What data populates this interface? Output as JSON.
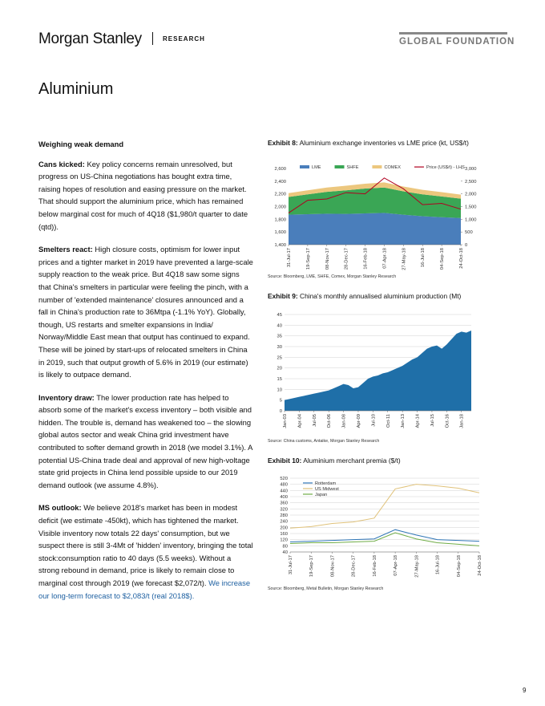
{
  "header": {
    "brand": "Morgan Stanley",
    "section": "RESEARCH",
    "series": "GLOBAL FOUNDATION"
  },
  "title": "Aluminium",
  "heading": "Weighing weak demand",
  "paragraphs": [
    {
      "lead": "Cans kicked:",
      "text": "Key policy concerns remain unresolved, but progress on US-China negotiations has bought extra time, raising hopes of resolution and easing pressure on the market. That should support the aluminium price, which has remained below marginal cost for much of 4Q18 ($1,980/t quarter to date (qtd))."
    },
    {
      "lead": "Smelters react:",
      "text": "High closure costs, optimism for lower input prices and a tighter market in 2019 have prevented a large-scale supply reaction to the weak price. But 4Q18 saw some signs that China's smelters in particular were feeling the pinch, with a number of 'extended maintenance' closures announced and a fall in China's production rate to 36Mtpa (-1.1% YoY). Globally, though, US restarts and smelter expansions in India/ Norway/Middle East mean that output has continued to expand. These will be joined by start-ups of relocated smelters in China in 2019, such that output growth of 5.6% in 2019 (our estimate) is likely to outpace demand."
    },
    {
      "lead": "Inventory draw:",
      "text": "The lower production rate has helped to absorb some of the market's excess inventory – both visible and hidden. The trouble is, demand has weakened too – the slowing global autos sector and weak China grid investment have contributed to softer demand growth in 2018 (we model 3.1%). A potential US-China trade deal and approval of new high-voltage state grid projects in China lend possible upside to our 2019 demand outlook (we assume 4.8%)."
    },
    {
      "lead": "MS outlook:",
      "text": "We believe 2018's market has been in modest deficit (we estimate -450kt), which has tightened the market. Visible inventory now totals 22 days' consumption, but we suspect there is still 3-4Mt of 'hidden' inventory, bringing the total stock:consumption ratio to 40 days (5.5 weeks). Without a strong rebound in demand, price is likely to remain close to marginal cost through 2019 (we forecast $2,072/t).",
      "highlight": "We increase our long-term forecast to $2,083/t (real 2018$)."
    }
  ],
  "exhibits": [
    {
      "label": "Exhibit 8:",
      "title": "Aluminium exchange inventories vs LME price (kt, US$/t)",
      "source": "Source: Bloomberg, LME, SHFE, Comex, Morgan Stanley Research",
      "chart": {
        "type": "area",
        "legend": "top",
        "categories": [
          "31-Jul-17",
          "19-Sep-17",
          "08-Nov-17",
          "28-Dec-17",
          "16-Feb-18",
          "07-Apr-18",
          "27-May-18",
          "16-Jul-18",
          "04-Sep-18",
          "24-Oct-18"
        ],
        "series": [
          {
            "name": "LME",
            "color": "#4a7ebb",
            "type": "area",
            "axis": "y2",
            "values": [
              1180,
              1200,
              1220,
              1210,
              1230,
              1250,
              1180,
              1120,
              1080,
              1050
            ]
          },
          {
            "name": "SHFE",
            "color": "#3aa655",
            "type": "area",
            "axis": "y2",
            "values": [
              700,
              780,
              860,
              930,
              980,
              1000,
              920,
              860,
              820,
              760
            ]
          },
          {
            "name": "COMEX",
            "color": "#ecc77e",
            "type": "area",
            "axis": "y2",
            "values": [
              150,
              160,
              170,
              180,
              190,
              200,
              190,
              180,
              170,
              160
            ]
          },
          {
            "name": "Price (US$/t) - LHS",
            "color": "#b00020",
            "type": "line",
            "values": [
              1900,
              2100,
              2120,
              2220,
              2200,
              2450,
              2280,
              2030,
              2050,
              1960
            ]
          }
        ],
        "ylim": [
          1400,
          2600
        ],
        "yticks": [
          {
            "value": 1400,
            "label": "1,400"
          },
          {
            "value": 1600,
            "label": "1,600"
          },
          {
            "value": 1800,
            "label": "1,800"
          },
          {
            "value": 2000,
            "label": "2,000"
          },
          {
            "value": 2200,
            "label": "2,200"
          },
          {
            "value": 2400,
            "label": "2,400"
          },
          {
            "value": 2600,
            "label": "2,600"
          }
        ],
        "y2lim": [
          0,
          3000
        ],
        "y2ticks": [
          0,
          500,
          {
            "value": 1000,
            "label": "1,000"
          },
          {
            "value": 1500,
            "label": "1,500"
          },
          {
            "value": 2000,
            "label": "2,000"
          },
          {
            "value": 2500,
            "label": "2,500"
          },
          {
            "value": 3000,
            "label": "3,000"
          }
        ],
        "grid": false
      }
    },
    {
      "label": "Exhibit 9:",
      "title": "China's monthly annualised aluminium production (Mt)",
      "source": "Source: China customs, Antaike, Morgan Stanley Research",
      "chart": {
        "type": "area",
        "color": "#1f6fa8",
        "categories": [
          "Jan-03",
          null,
          null,
          "Apr-04",
          null,
          null,
          "Jul-05",
          null,
          null,
          "Oct-06",
          null,
          null,
          "Jan-08",
          null,
          null,
          "Apr-09",
          null,
          null,
          "Jul-10",
          null,
          null,
          "Oct-11",
          null,
          null,
          "Jan-13",
          null,
          null,
          "Apr-14",
          null,
          null,
          "Jul-15",
          null,
          null,
          "Oct-16",
          null,
          null,
          "Jan-18",
          null,
          null
        ],
        "values": [
          5,
          5.5,
          6,
          6.5,
          7,
          7.5,
          8,
          8.5,
          9,
          9.5,
          10.5,
          11.5,
          12.5,
          12,
          10.5,
          11,
          13,
          15,
          16,
          16.5,
          17.5,
          18,
          19,
          20,
          21,
          22.5,
          24,
          25,
          27,
          29,
          30,
          30.5,
          29,
          31,
          33.5,
          36,
          37,
          36.5,
          37.5
        ],
        "ylim": [
          0,
          45
        ],
        "yticks": [
          0,
          5,
          10,
          15,
          20,
          25,
          30,
          35,
          40,
          45
        ],
        "grid": true
      }
    },
    {
      "label": "Exhibit 10:",
      "title": "Aluminium merchant premia ($/t)",
      "source": "Source: Bloomberg, Metal Bulletin, Morgan Stanley Research",
      "chart": {
        "type": "line",
        "legend": "upper left",
        "categories": [
          "31-Jul-17",
          "19-Sep-17",
          "08-Nov-17",
          "28-Dec-17",
          "16-Feb-18",
          "07-Apr-18",
          "27-May-18",
          "16-Jul-18",
          "04-Sep-18",
          "24-Oct-18"
        ],
        "series": [
          {
            "name": "Rotterdam",
            "color": "#2e75b6",
            "values": [
              105,
              110,
              115,
              120,
              125,
              185,
              150,
              120,
              115,
              110
            ]
          },
          {
            "name": "US Midwest",
            "color": "#e0c27a",
            "values": [
              195,
              205,
              225,
              235,
              260,
              450,
              480,
              470,
              455,
              425
            ]
          },
          {
            "name": "Japan",
            "color": "#70ad47",
            "values": [
              95,
              100,
              100,
              105,
              110,
              165,
              125,
              100,
              90,
              80
            ]
          }
        ],
        "ylim": [
          40,
          520
        ],
        "yticks": [
          40,
          80,
          120,
          160,
          200,
          240,
          280,
          320,
          360,
          400,
          440,
          480,
          520
        ],
        "grid": true
      }
    }
  ],
  "page_number": "9"
}
